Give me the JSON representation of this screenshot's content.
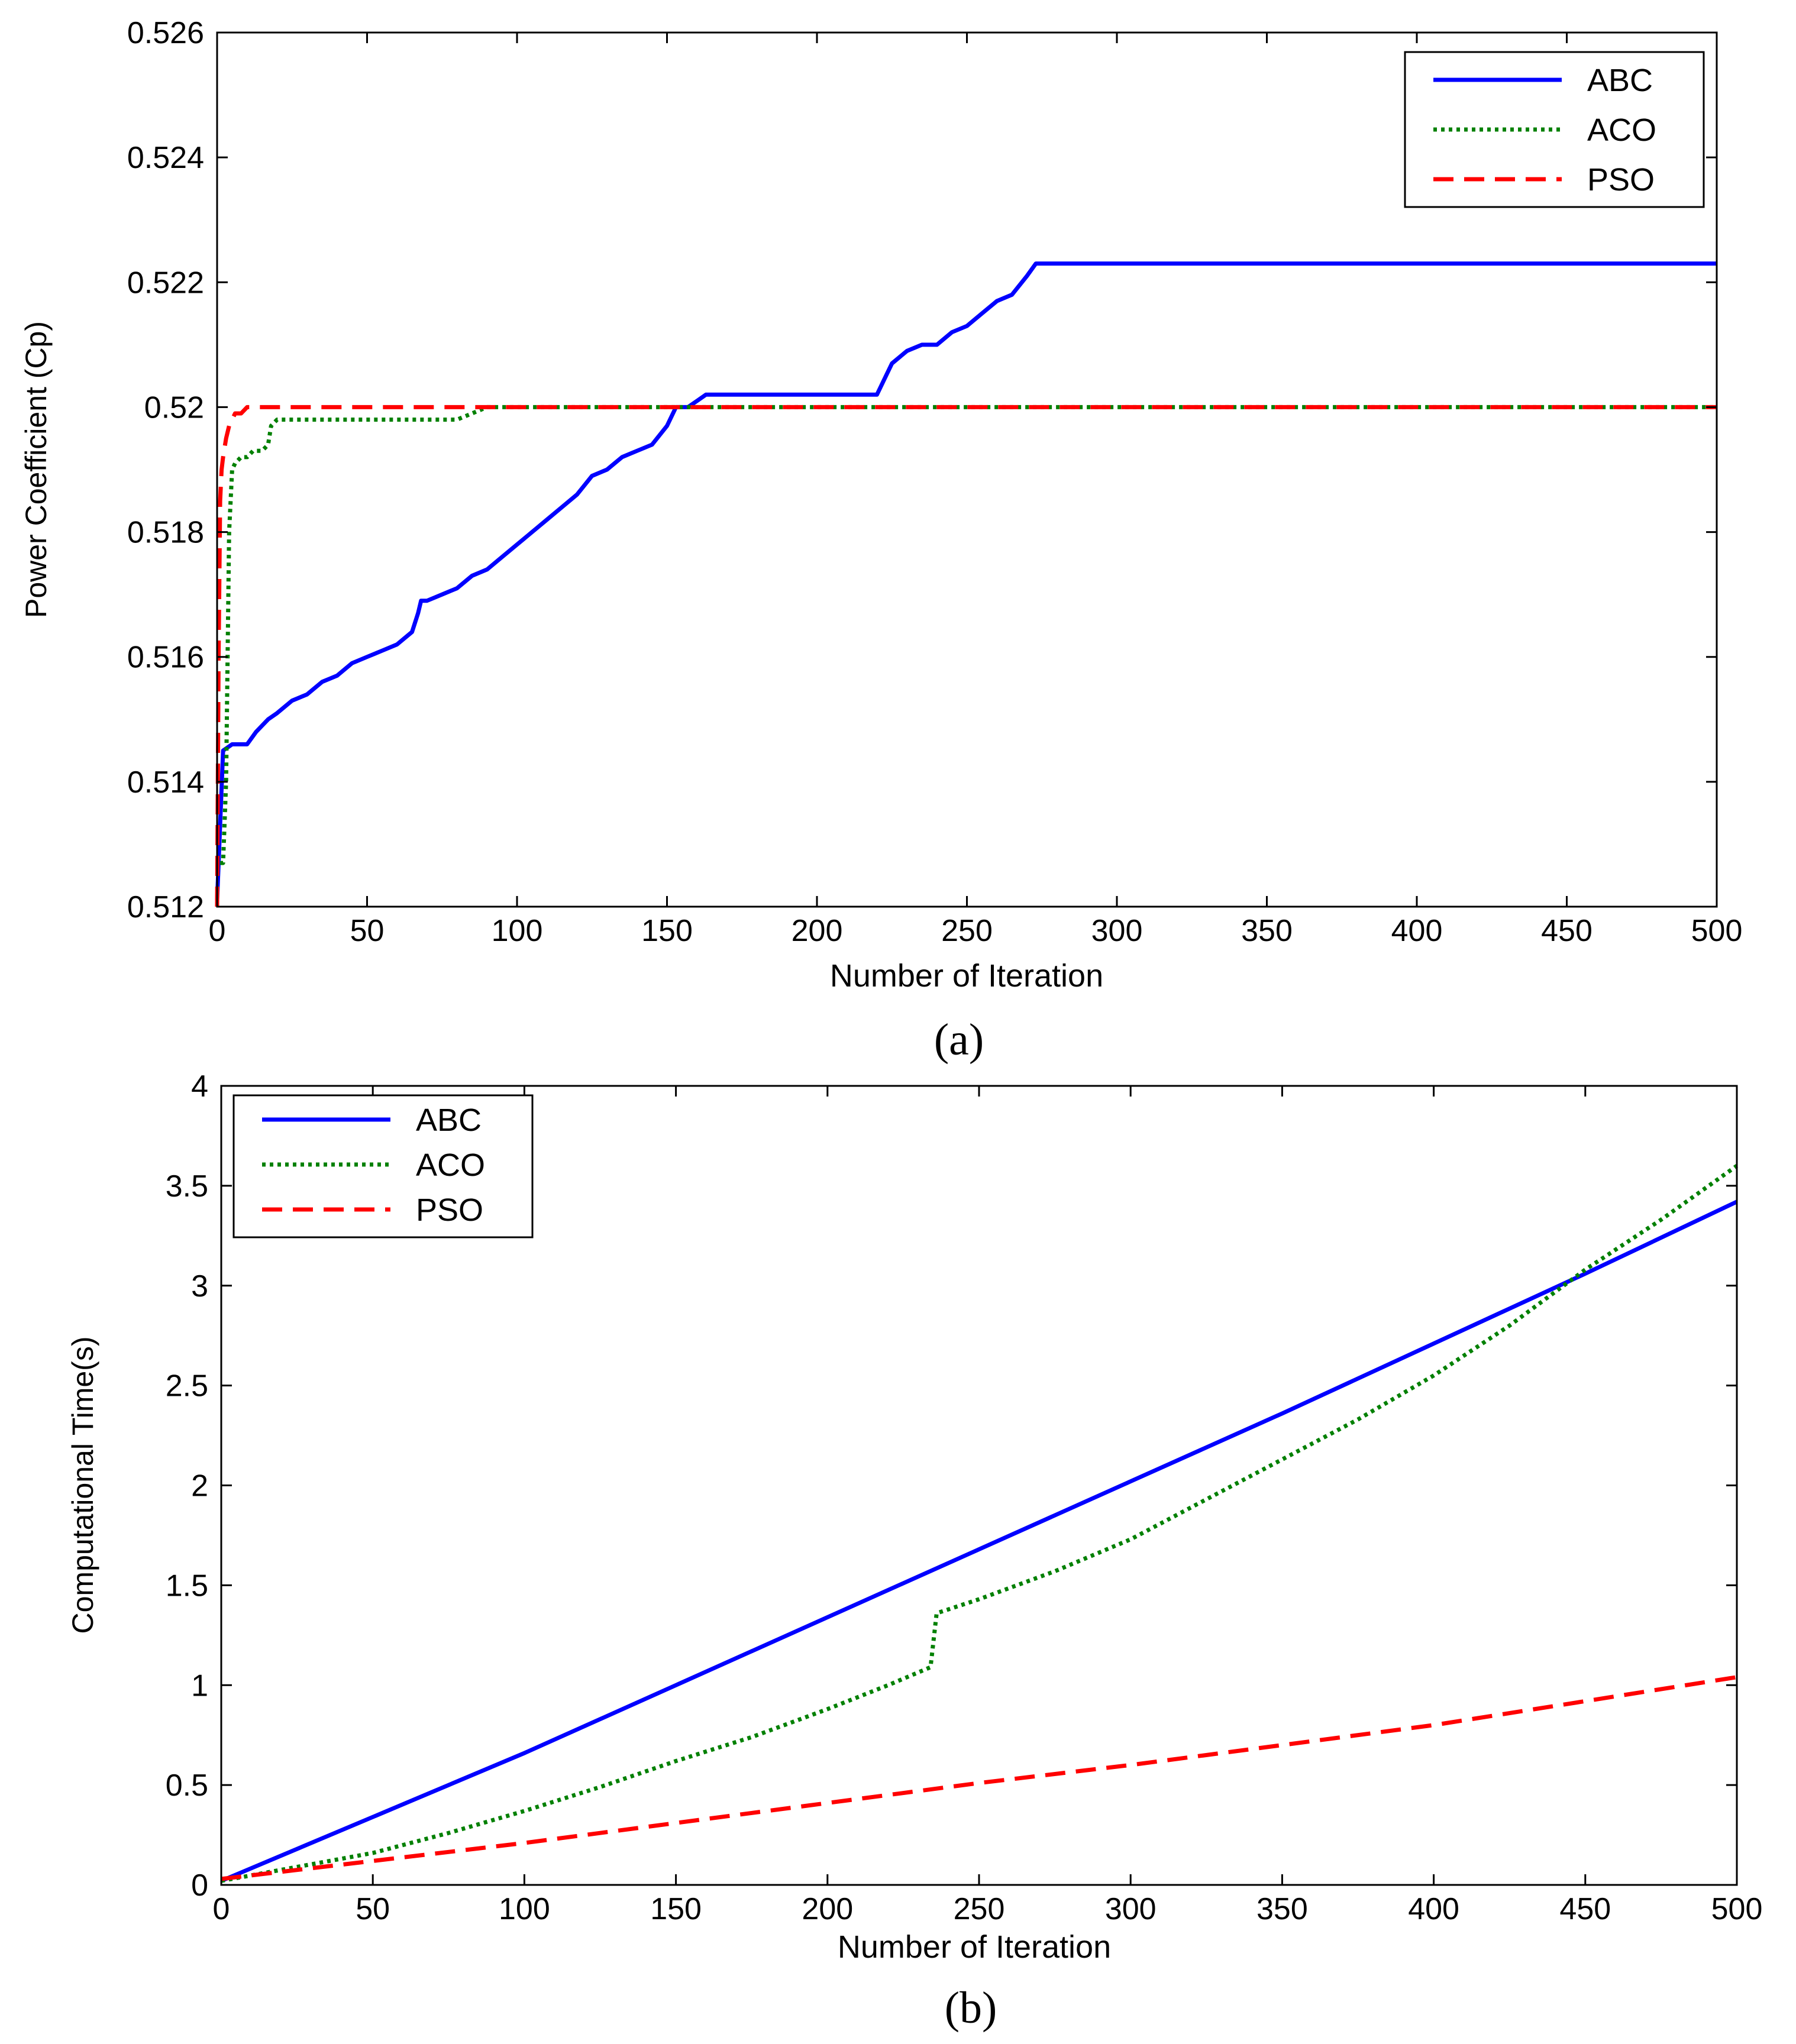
{
  "chart_data": [
    {
      "type": "line",
      "caption": "(a)",
      "title": "",
      "xlabel": "Number of Iteration",
      "ylabel": "Power Coefficient (Cp)",
      "xlim": [
        0,
        500
      ],
      "ylim": [
        0.512,
        0.526
      ],
      "xticks": [
        0,
        50,
        100,
        150,
        200,
        250,
        300,
        350,
        400,
        450,
        500
      ],
      "yticks": [
        0.512,
        0.514,
        0.516,
        0.518,
        0.52,
        0.522,
        0.524,
        0.526
      ],
      "ytick_labels": [
        "0.512",
        "0.514",
        "0.516",
        "0.518",
        "0.52",
        "0.522",
        "0.524",
        "0.526"
      ],
      "grid": false,
      "legend_position": "top-right",
      "series": [
        {
          "name": "ABC",
          "color": "#0000ff",
          "style": "solid",
          "x": [
            0,
            2,
            5,
            10,
            13,
            17,
            20,
            25,
            30,
            35,
            40,
            45,
            50,
            55,
            60,
            65,
            67,
            68,
            70,
            75,
            80,
            85,
            90,
            95,
            100,
            105,
            110,
            115,
            120,
            125,
            130,
            135,
            140,
            145,
            150,
            153,
            157,
            160,
            163,
            170,
            180,
            190,
            200,
            210,
            220,
            222,
            225,
            230,
            235,
            240,
            245,
            250,
            255,
            260,
            265,
            270,
            273,
            280,
            300,
            350,
            400,
            450,
            500
          ],
          "y": [
            0.5121,
            0.5145,
            0.5146,
            0.5146,
            0.5148,
            0.515,
            0.5151,
            0.5153,
            0.5154,
            0.5156,
            0.5157,
            0.5159,
            0.516,
            0.5161,
            0.5162,
            0.5164,
            0.5167,
            0.5169,
            0.5169,
            0.517,
            0.5171,
            0.5173,
            0.5174,
            0.5176,
            0.5178,
            0.518,
            0.5182,
            0.5184,
            0.5186,
            0.5189,
            0.519,
            0.5192,
            0.5193,
            0.5194,
            0.5197,
            0.52,
            0.52,
            0.5201,
            0.5202,
            0.5202,
            0.5202,
            0.5202,
            0.5202,
            0.5202,
            0.5202,
            0.5204,
            0.5207,
            0.5209,
            0.521,
            0.521,
            0.5212,
            0.5213,
            0.5215,
            0.5217,
            0.5218,
            0.5221,
            0.5223,
            0.5223,
            0.5223,
            0.5223,
            0.5223,
            0.5223,
            0.5223
          ]
        },
        {
          "name": "ACO",
          "color": "#008000",
          "style": "dotted",
          "x": [
            1,
            2,
            3,
            4,
            5,
            6,
            8,
            10,
            12,
            15,
            17,
            18,
            20,
            25,
            30,
            40,
            50,
            60,
            70,
            80,
            85,
            90,
            100,
            200,
            300,
            400,
            500
          ],
          "y": [
            0.5127,
            0.5127,
            0.514,
            0.518,
            0.519,
            0.5191,
            0.5192,
            0.5192,
            0.5193,
            0.5193,
            0.5194,
            0.5197,
            0.5198,
            0.5198,
            0.5198,
            0.5198,
            0.5198,
            0.5198,
            0.5198,
            0.5198,
            0.5199,
            0.52,
            0.52,
            0.52,
            0.52,
            0.52,
            0.52
          ]
        },
        {
          "name": "PSO",
          "color": "#ff0000",
          "style": "dashed",
          "x": [
            0,
            0.5,
            1,
            1.5,
            2,
            3,
            4,
            5,
            6,
            8,
            10,
            20,
            50,
            100,
            200,
            300,
            400,
            500
          ],
          "y": [
            0.512,
            0.516,
            0.5185,
            0.519,
            0.5192,
            0.5195,
            0.5197,
            0.5198,
            0.5199,
            0.5199,
            0.52,
            0.52,
            0.52,
            0.52,
            0.52,
            0.52,
            0.52,
            0.52
          ]
        }
      ]
    },
    {
      "type": "line",
      "caption": "(b)",
      "title": "",
      "xlabel": "Number of Iteration",
      "ylabel": "Computational Time(s)",
      "xlim": [
        0,
        500
      ],
      "ylim": [
        0,
        4
      ],
      "xticks": [
        0,
        50,
        100,
        150,
        200,
        250,
        300,
        350,
        400,
        450,
        500
      ],
      "yticks": [
        0,
        0.5,
        1,
        1.5,
        2,
        2.5,
        3,
        3.5,
        4
      ],
      "ytick_labels": [
        "0",
        "0.5",
        "1",
        "1.5",
        "2",
        "2.5",
        "3",
        "3.5",
        "4"
      ],
      "grid": false,
      "legend_position": "top-left",
      "series": [
        {
          "name": "ABC",
          "color": "#0000ff",
          "style": "solid",
          "x": [
            0,
            50,
            100,
            150,
            200,
            250,
            300,
            350,
            400,
            450,
            500
          ],
          "y": [
            0.02,
            0.34,
            0.66,
            1.0,
            1.34,
            1.68,
            2.02,
            2.36,
            2.71,
            3.06,
            3.42
          ]
        },
        {
          "name": "ACO",
          "color": "#008000",
          "style": "dotted",
          "x": [
            0,
            25,
            50,
            75,
            100,
            125,
            150,
            175,
            200,
            220,
            234,
            236,
            250,
            275,
            300,
            325,
            350,
            375,
            400,
            425,
            450,
            475,
            500
          ],
          "y": [
            0.02,
            0.09,
            0.16,
            0.26,
            0.37,
            0.49,
            0.62,
            0.74,
            0.88,
            1.0,
            1.09,
            1.36,
            1.43,
            1.57,
            1.73,
            1.93,
            2.13,
            2.33,
            2.55,
            2.8,
            3.08,
            3.33,
            3.6
          ]
        },
        {
          "name": "PSO",
          "color": "#ff0000",
          "style": "dashed",
          "x": [
            0,
            50,
            100,
            150,
            200,
            250,
            300,
            350,
            400,
            450,
            500
          ],
          "y": [
            0.03,
            0.12,
            0.21,
            0.31,
            0.41,
            0.51,
            0.6,
            0.7,
            0.8,
            0.92,
            1.04
          ]
        }
      ]
    }
  ]
}
